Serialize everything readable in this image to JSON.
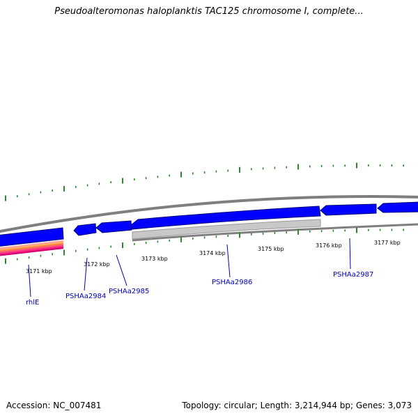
{
  "title": "Pseudoalteromonas haloplanktis TAC125 chromosome I, complete...",
  "footer": {
    "accession": "Accession: NC_007481",
    "summary": "Topology: circular; Length: 3,214,944 bp; Genes: 3,073"
  },
  "colors": {
    "gene_fill": "#0000ff",
    "gene_stroke": "#00007a",
    "pseudo_fill": "#c8c8c8",
    "backbone": "#7f7f7f",
    "ticks": "#2a8a2a",
    "labels": "#0000c0"
  },
  "kbp_labels": [
    "3171 kbp",
    "3172 kbp",
    "3173 kbp",
    "3174 kbp",
    "3175 kbp",
    "3176 kbp",
    "3177 kbp"
  ],
  "genes": [
    "rhlE",
    "PSHAa2984",
    "PSHAa2985",
    "PSHAa2986",
    "PSHAa2987"
  ]
}
